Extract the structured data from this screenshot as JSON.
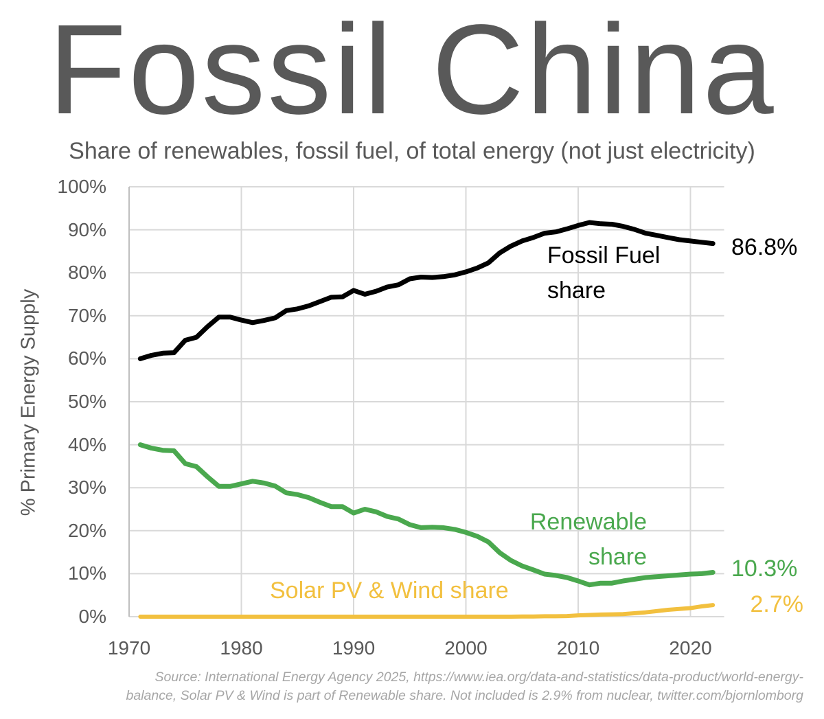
{
  "title": "Fossil China",
  "subtitle": "Share of renewables, fossil fuel, of total energy (not just electricity)",
  "source_lines": [
    "Source: International Energy Agency 2025, https://www.iea.org/data-and-statistics/data-product/world-energy-",
    "balance, Solar PV & Wind is part of Renewable share. Not included is 2.9% from nuclear, twitter.com/bjornlomborg"
  ],
  "chart_data": {
    "type": "line",
    "title": "Fossil China",
    "subtitle": "Share of renewables, fossil fuel, of total energy (not just electricity)",
    "xlabel": "",
    "ylabel": "% Primary Energy Supply",
    "xlim": [
      1970,
      2023
    ],
    "ylim": [
      0,
      100
    ],
    "grid": true,
    "x_ticks": [
      "1970",
      "1980",
      "1990",
      "2000",
      "2010",
      "2020"
    ],
    "y_ticks": [
      "0%",
      "10%",
      "20%",
      "30%",
      "40%",
      "50%",
      "60%",
      "70%",
      "80%",
      "90%",
      "100%"
    ],
    "x": [
      1971,
      1972,
      1973,
      1974,
      1975,
      1976,
      1977,
      1978,
      1979,
      1980,
      1981,
      1982,
      1983,
      1984,
      1985,
      1986,
      1987,
      1988,
      1989,
      1990,
      1991,
      1992,
      1993,
      1994,
      1995,
      1996,
      1997,
      1998,
      1999,
      2000,
      2001,
      2002,
      2003,
      2004,
      2005,
      2006,
      2007,
      2008,
      2009,
      2010,
      2011,
      2012,
      2013,
      2014,
      2015,
      2016,
      2017,
      2018,
      2019,
      2020,
      2021,
      2022
    ],
    "series": [
      {
        "name": "Fossil Fuel share",
        "label_lines": [
          "Fossil Fuel",
          "share"
        ],
        "end_label": "86.8%",
        "color": "#000000",
        "values": [
          60,
          60.8,
          61.3,
          61.4,
          64.3,
          65,
          67.5,
          69.7,
          69.7,
          69,
          68.4,
          68.9,
          69.5,
          71.2,
          71.6,
          72.3,
          73.3,
          74.3,
          74.4,
          75.9,
          75,
          75.7,
          76.7,
          77.2,
          78.6,
          79,
          78.9,
          79.1,
          79.5,
          80.2,
          81.1,
          82.3,
          84.6,
          86.2,
          87.4,
          88.2,
          89.2,
          89.5,
          90.2,
          91,
          91.7,
          91.4,
          91.3,
          90.8,
          90.1,
          89.2,
          88.7,
          88.2,
          87.7,
          87.4,
          87.1,
          86.8
        ]
      },
      {
        "name": "Renewable share",
        "label_lines": [
          "Renewable",
          "share"
        ],
        "end_label": "10.3%",
        "color": "#4aa84e",
        "values": [
          40,
          39.2,
          38.7,
          38.6,
          35.6,
          34.9,
          32.5,
          30.3,
          30.3,
          30.9,
          31.5,
          31.1,
          30.4,
          28.8,
          28.4,
          27.7,
          26.6,
          25.6,
          25.6,
          24.1,
          25,
          24.4,
          23.3,
          22.7,
          21.4,
          20.7,
          20.8,
          20.7,
          20.3,
          19.6,
          18.7,
          17.4,
          14.9,
          13.1,
          11.8,
          10.9,
          9.9,
          9.6,
          9.1,
          8.3,
          7.4,
          7.8,
          7.8,
          8.3,
          8.7,
          9.1,
          9.3,
          9.5,
          9.7,
          9.9,
          10.0,
          10.3
        ]
      },
      {
        "name": "Solar PV & Wind share",
        "label_lines": [
          "Solar PV & Wind share"
        ],
        "end_label": "2.7%",
        "color": "#f2c03f",
        "values": [
          0,
          0,
          0,
          0,
          0,
          0,
          0,
          0,
          0,
          0,
          0,
          0,
          0,
          0,
          0,
          0,
          0,
          0,
          0,
          0,
          0,
          0,
          0,
          0,
          0,
          0,
          0,
          0,
          0,
          0,
          0,
          0,
          0,
          0,
          0.05,
          0.05,
          0.1,
          0.1,
          0.15,
          0.3,
          0.4,
          0.5,
          0.55,
          0.6,
          0.8,
          1.0,
          1.3,
          1.6,
          1.8,
          2.0,
          2.4,
          2.7
        ]
      }
    ]
  }
}
